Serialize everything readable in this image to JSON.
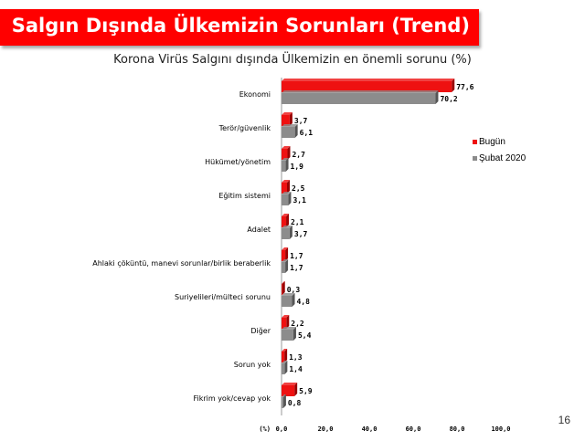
{
  "header": {
    "title": "Salgın Dışında Ülkemizin Sorunları (Trend)"
  },
  "page_number": "16",
  "colors": {
    "header": "#ff0000",
    "series_1": "#ee1111",
    "series_2": "#8c8c8c"
  },
  "chart_data": {
    "type": "bar",
    "orientation": "horizontal",
    "title": "Korona Virüs Salgını dışında Ülkemizin en önemli sorunu (%)",
    "xlabel": "(%)",
    "xlim": [
      0,
      100
    ],
    "ticks": [
      "0,0",
      "20,0",
      "40,0",
      "60,0",
      "80,0",
      "100,0"
    ],
    "categories": [
      "Ekonomi",
      "Terör/güvenlik",
      "Hükümet/yönetim",
      "Eğitim sistemi",
      "Adalet",
      "Ahlaki çöküntü, manevi sorunlar/birlik beraberlik",
      "Suriyelileri/mülteci sorunu",
      "Diğer",
      "Sorun yok",
      "Fikrim yok/cevap yok"
    ],
    "series": [
      {
        "name": "Bugün",
        "values": [
          77.6,
          3.7,
          2.7,
          2.5,
          2.1,
          1.7,
          0.3,
          2.2,
          1.3,
          5.9
        ],
        "labels": [
          "77,6",
          "3,7",
          "2,7",
          "2,5",
          "2,1",
          "1,7",
          "0,3",
          "2,2",
          "1,3",
          "5,9"
        ]
      },
      {
        "name": "Şubat 2020",
        "values": [
          70.2,
          6.1,
          1.9,
          3.1,
          3.7,
          1.7,
          4.8,
          5.4,
          1.4,
          0.8
        ],
        "labels": [
          "70,2",
          "6,1",
          "1,9",
          "3,1",
          "3,7",
          "1,7",
          "4,8",
          "5,4",
          "1,4",
          "0,8"
        ]
      }
    ],
    "legend_position": "right"
  }
}
